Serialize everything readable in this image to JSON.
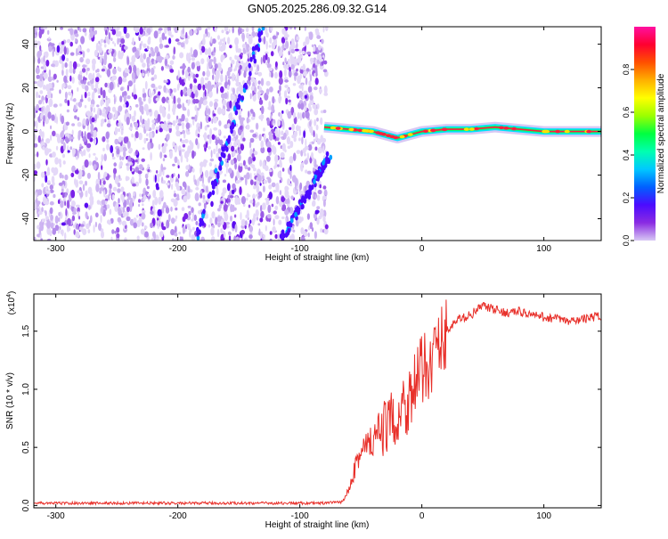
{
  "title": "GN05.2025.286.09.32.G14",
  "chart_data": [
    {
      "type": "heatmap",
      "xlabel": "Height of straight line (km)",
      "ylabel": "Frequency (Hz)",
      "xlim": [
        -318,
        147
      ],
      "ylim": [
        -50,
        48
      ],
      "xticks": [
        -300,
        -200,
        -100,
        0,
        100
      ],
      "xtick_labels": [
        "-300",
        "-200",
        "-100",
        "0",
        "100"
      ],
      "yticks": [
        -40,
        -20,
        0,
        20,
        40
      ],
      "ytick_labels": [
        "-40",
        "-20",
        "0",
        "20",
        "40"
      ],
      "colorbar": {
        "label": "Normalized spectral amplitude",
        "range": [
          0,
          1
        ],
        "ticks": [
          0.0,
          0.2,
          0.4,
          0.6,
          0.8
        ],
        "tick_labels": [
          "0.0",
          "0.2",
          "0.4",
          "0.6",
          "0.8"
        ],
        "colors": [
          "#d8c8f4",
          "#8a2be2",
          "#4b0bff",
          "#0060ff",
          "#00c8ff",
          "#00ffb0",
          "#00ff40",
          "#9cff00",
          "#ffff00",
          "#ffb000",
          "#ff5000",
          "#ff0030",
          "#ff10a0"
        ]
      },
      "noise_region": {
        "x": [
          -318,
          -78
        ],
        "description_level": 0.2
      },
      "diagonal_tracks": [
        {
          "x": [
            -185,
            -130
          ],
          "y": [
            -50,
            48
          ]
        },
        {
          "x": [
            -115,
            -75
          ],
          "y": [
            -50,
            -10
          ]
        }
      ],
      "signal_line": {
        "x": [
          -80,
          -60,
          -40,
          -20,
          0,
          20,
          40,
          60,
          80,
          100,
          120,
          147
        ],
        "y": [
          2,
          1,
          0,
          -3,
          0,
          1,
          1,
          2,
          1,
          0,
          0,
          0
        ]
      }
    },
    {
      "type": "line",
      "xlabel": "Height of straight line (km)",
      "ylabel": "SNR (10 * v/v)",
      "multiplier_label": "(x10",
      "multiplier_exp": "4",
      "xlim": [
        -318,
        147
      ],
      "ylim": [
        -0.02,
        1.82
      ],
      "xticks": [
        -300,
        -200,
        -100,
        0,
        100
      ],
      "xtick_labels": [
        "-300",
        "-200",
        "-100",
        "0",
        "100"
      ],
      "yticks": [
        0.0,
        0.5,
        1.0,
        1.5
      ],
      "ytick_labels": [
        "0.0",
        "0.5",
        "1.0",
        "1.5"
      ],
      "color": "#e8302a",
      "x": [
        -318,
        -280,
        -240,
        -200,
        -160,
        -120,
        -100,
        -80,
        -65,
        -60,
        -55,
        -50,
        -45,
        -40,
        -35,
        -30,
        -25,
        -20,
        -15,
        -10,
        -5,
        0,
        5,
        10,
        15,
        20,
        30,
        40,
        50,
        60,
        70,
        80,
        90,
        100,
        110,
        120,
        130,
        140,
        147
      ],
      "y": [
        0.02,
        0.02,
        0.02,
        0.02,
        0.02,
        0.02,
        0.02,
        0.02,
        0.03,
        0.15,
        0.35,
        0.45,
        0.5,
        0.55,
        0.6,
        0.68,
        0.72,
        0.78,
        0.86,
        0.95,
        1.05,
        1.15,
        1.22,
        1.3,
        1.4,
        1.5,
        1.6,
        1.64,
        1.72,
        1.68,
        1.66,
        1.67,
        1.64,
        1.62,
        1.61,
        1.58,
        1.6,
        1.62,
        1.63
      ]
    }
  ]
}
